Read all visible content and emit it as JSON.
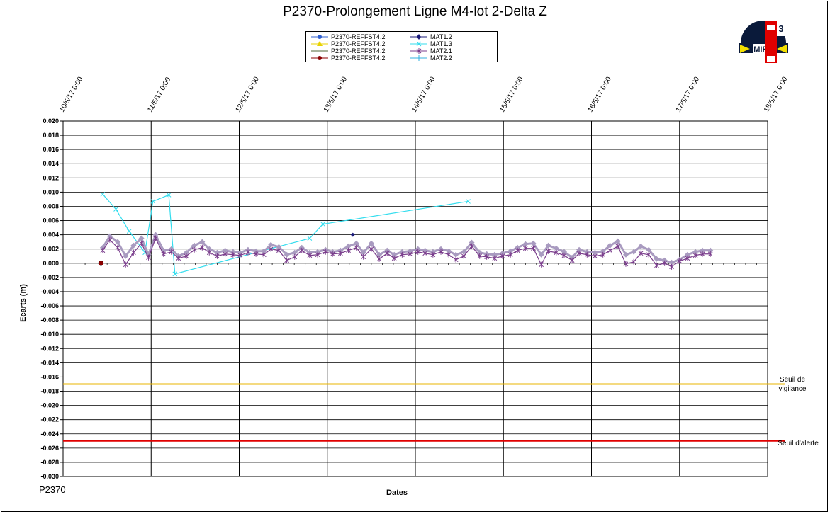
{
  "title": "P2370-Prolongement  Ligne  M4-lot 2-Delta Z",
  "corner_label": "P2370",
  "logo_text": "MIRE",
  "colors": {
    "grid": "#000000",
    "vigilance": "#E8B400",
    "alerte": "#E00000",
    "mat13": "#33DDEE",
    "mat21": "#7A3D8C",
    "refst_grey": "#A99BC0",
    "mat12": "#1B1B7A",
    "refst_red": "#8B0000"
  },
  "legend": [
    {
      "label": "P2370-REFFST4.2",
      "color": "#3060D0",
      "marker": "circle"
    },
    {
      "label": "P2370-REFFST4.2",
      "color": "#E8D200",
      "marker": "triangle"
    },
    {
      "label": "P2370-REFFST4.2",
      "color": "#8A9A7A",
      "marker": "none"
    },
    {
      "label": "P2370-REFFST4.2",
      "color": "#8B0000",
      "marker": "circle"
    },
    {
      "label": "MAT1.2",
      "color": "#1B1B7A",
      "marker": "diamond"
    },
    {
      "label": "MAT1.3",
      "color": "#33DDEE",
      "marker": "x"
    },
    {
      "label": "MAT2.1",
      "color": "#7A3D8C",
      "marker": "star"
    },
    {
      "label": "MAT2.2",
      "color": "#33B0E0",
      "marker": "plus"
    }
  ],
  "chart_data": {
    "type": "line",
    "title": "P2370-Prolongement  Ligne  M4-lot 2-Delta Z",
    "xlabel": "Dates",
    "ylabel": "Ecarts (m)",
    "x_ticks": [
      "10/5/17 0:00",
      "11/5/17 0:00",
      "12/5/17 0:00",
      "13/5/17 0:00",
      "14/5/17 0:00",
      "15/5/17 0:00",
      "16/5/17 0:00",
      "17/5/17 0:00",
      "18/5/17 0:00"
    ],
    "y_ticks": [
      "0.020",
      "0.018",
      "0.016",
      "0.014",
      "0.012",
      "0.010",
      "0.008",
      "0.006",
      "0.004",
      "0.002",
      "0.000",
      "-0.002",
      "-0.004",
      "-0.006",
      "-0.008",
      "-0.010",
      "-0.012",
      "-0.014",
      "-0.016",
      "-0.018",
      "-0.020",
      "-0.022",
      "-0.024",
      "-0.026",
      "-0.028",
      "-0.030"
    ],
    "xlim_days": [
      0,
      8
    ],
    "ylim": [
      -0.03,
      0.02
    ],
    "grid": true,
    "legend_position": "top-center",
    "thresholds": [
      {
        "label_lines": [
          "Seuil de",
          "vigilance"
        ],
        "value": -0.017,
        "color": "#E8B400"
      },
      {
        "label_lines": [
          "Seuil d'alerte"
        ],
        "value": -0.025,
        "color": "#E00000"
      }
    ],
    "series": [
      {
        "name": "P2370-REFFST4.2",
        "color": "#8B0000",
        "marker": "circle",
        "x": [
          0.43
        ],
        "y": [
          0.0
        ]
      },
      {
        "name": "MAT1.2",
        "color": "#1B1B7A",
        "marker": "diamond",
        "x": [
          3.29
        ],
        "y": [
          0.004
        ]
      },
      {
        "name": "MAT1.3",
        "color": "#33DDEE",
        "marker": "x",
        "x": [
          0.45,
          0.6,
          0.75,
          0.93,
          1.02,
          1.2,
          1.27,
          2.8,
          2.95,
          4.6
        ],
        "y": [
          0.0097,
          0.0076,
          0.0045,
          0.0015,
          0.0087,
          0.0096,
          -0.0015,
          0.0035,
          0.0055,
          0.0087
        ]
      },
      {
        "name": "MAT2.1",
        "color": "#A99BC0",
        "marker": "diamond-grey",
        "x": [
          0.45,
          0.53,
          0.62,
          0.71,
          0.8,
          0.89,
          0.97,
          1.05,
          1.14,
          1.23,
          1.31,
          1.4,
          1.49,
          1.58,
          1.66,
          1.75,
          1.84,
          1.93,
          2.01,
          2.1,
          2.19,
          2.28,
          2.36,
          2.45,
          2.54,
          2.63,
          2.71,
          2.8,
          2.89,
          2.98,
          3.06,
          3.15,
          3.24,
          3.33,
          3.41,
          3.5,
          3.59,
          3.68,
          3.76,
          3.85,
          3.94,
          4.03,
          4.11,
          4.2,
          4.29,
          4.38,
          4.46,
          4.55,
          4.64,
          4.73,
          4.81,
          4.9,
          4.99,
          5.08,
          5.16,
          5.25,
          5.34,
          5.43,
          5.51,
          5.6,
          5.69,
          5.78,
          5.86,
          5.95,
          6.04,
          6.13,
          6.21,
          6.3,
          6.39,
          6.48,
          6.56,
          6.65,
          6.74,
          6.83,
          6.91,
          7.0,
          7.09,
          7.18,
          7.26,
          7.35
        ],
        "y": [
          0.0022,
          0.0038,
          0.003,
          0.001,
          0.0025,
          0.0035,
          0.0012,
          0.004,
          0.0018,
          0.002,
          0.001,
          0.0015,
          0.0025,
          0.003,
          0.002,
          0.0015,
          0.0018,
          0.0016,
          0.0015,
          0.0019,
          0.0017,
          0.0017,
          0.0026,
          0.0023,
          0.0012,
          0.0015,
          0.0022,
          0.0015,
          0.0016,
          0.0019,
          0.0016,
          0.0018,
          0.0024,
          0.0028,
          0.0015,
          0.0028,
          0.0012,
          0.0018,
          0.0012,
          0.0016,
          0.0017,
          0.002,
          0.0018,
          0.0016,
          0.002,
          0.0017,
          0.0012,
          0.0016,
          0.0029,
          0.0015,
          0.0013,
          0.0012,
          0.0014,
          0.0017,
          0.0022,
          0.0027,
          0.0028,
          0.0012,
          0.0025,
          0.0021,
          0.0016,
          0.0008,
          0.0019,
          0.0016,
          0.0015,
          0.0017,
          0.0025,
          0.0031,
          0.0012,
          0.0016,
          0.0024,
          0.0019,
          0.0006,
          0.0004,
          0.0001,
          0.0005,
          0.0012,
          0.0016,
          0.0018,
          0.0018
        ]
      },
      {
        "name": "MAT2.1",
        "color": "#7A3D8C",
        "marker": "star",
        "x": [
          0.45,
          0.53,
          0.62,
          0.71,
          0.8,
          0.89,
          0.97,
          1.05,
          1.14,
          1.23,
          1.31,
          1.4,
          1.49,
          1.58,
          1.66,
          1.75,
          1.84,
          1.93,
          2.01,
          2.1,
          2.19,
          2.28,
          2.36,
          2.45,
          2.54,
          2.63,
          2.71,
          2.8,
          2.89,
          2.98,
          3.06,
          3.15,
          3.24,
          3.33,
          3.41,
          3.5,
          3.59,
          3.68,
          3.76,
          3.85,
          3.94,
          4.03,
          4.11,
          4.2,
          4.29,
          4.38,
          4.46,
          4.55,
          4.64,
          4.73,
          4.81,
          4.9,
          4.99,
          5.08,
          5.16,
          5.25,
          5.34,
          5.43,
          5.51,
          5.6,
          5.69,
          5.78,
          5.86,
          5.95,
          6.04,
          6.13,
          6.21,
          6.3,
          6.39,
          6.48,
          6.56,
          6.65,
          6.74,
          6.83,
          6.91,
          7.0,
          7.09,
          7.18,
          7.26,
          7.35
        ],
        "y": [
          0.0018,
          0.0033,
          0.0022,
          -0.0002,
          0.0015,
          0.0028,
          0.0008,
          0.0035,
          0.0013,
          0.0016,
          0.0007,
          0.001,
          0.0019,
          0.0022,
          0.0015,
          0.001,
          0.0013,
          0.0012,
          0.0011,
          0.0015,
          0.0013,
          0.0012,
          0.002,
          0.0018,
          0.0004,
          0.0009,
          0.0018,
          0.0011,
          0.0012,
          0.0016,
          0.0013,
          0.0014,
          0.0018,
          0.0022,
          0.0009,
          0.002,
          0.0006,
          0.0014,
          0.0007,
          0.0012,
          0.0013,
          0.0016,
          0.0014,
          0.0012,
          0.0016,
          0.0012,
          0.0005,
          0.001,
          0.0024,
          0.001,
          0.0009,
          0.0007,
          0.001,
          0.0012,
          0.0018,
          0.0021,
          0.0021,
          -0.0002,
          0.0017,
          0.0015,
          0.0011,
          0.0004,
          0.0014,
          0.0012,
          0.001,
          0.0012,
          0.0018,
          0.0024,
          -0.0001,
          0.0002,
          0.0014,
          0.0012,
          -0.0003,
          0.0,
          -0.0005,
          0.0003,
          0.0007,
          0.0011,
          0.0013,
          0.0013
        ]
      }
    ]
  }
}
